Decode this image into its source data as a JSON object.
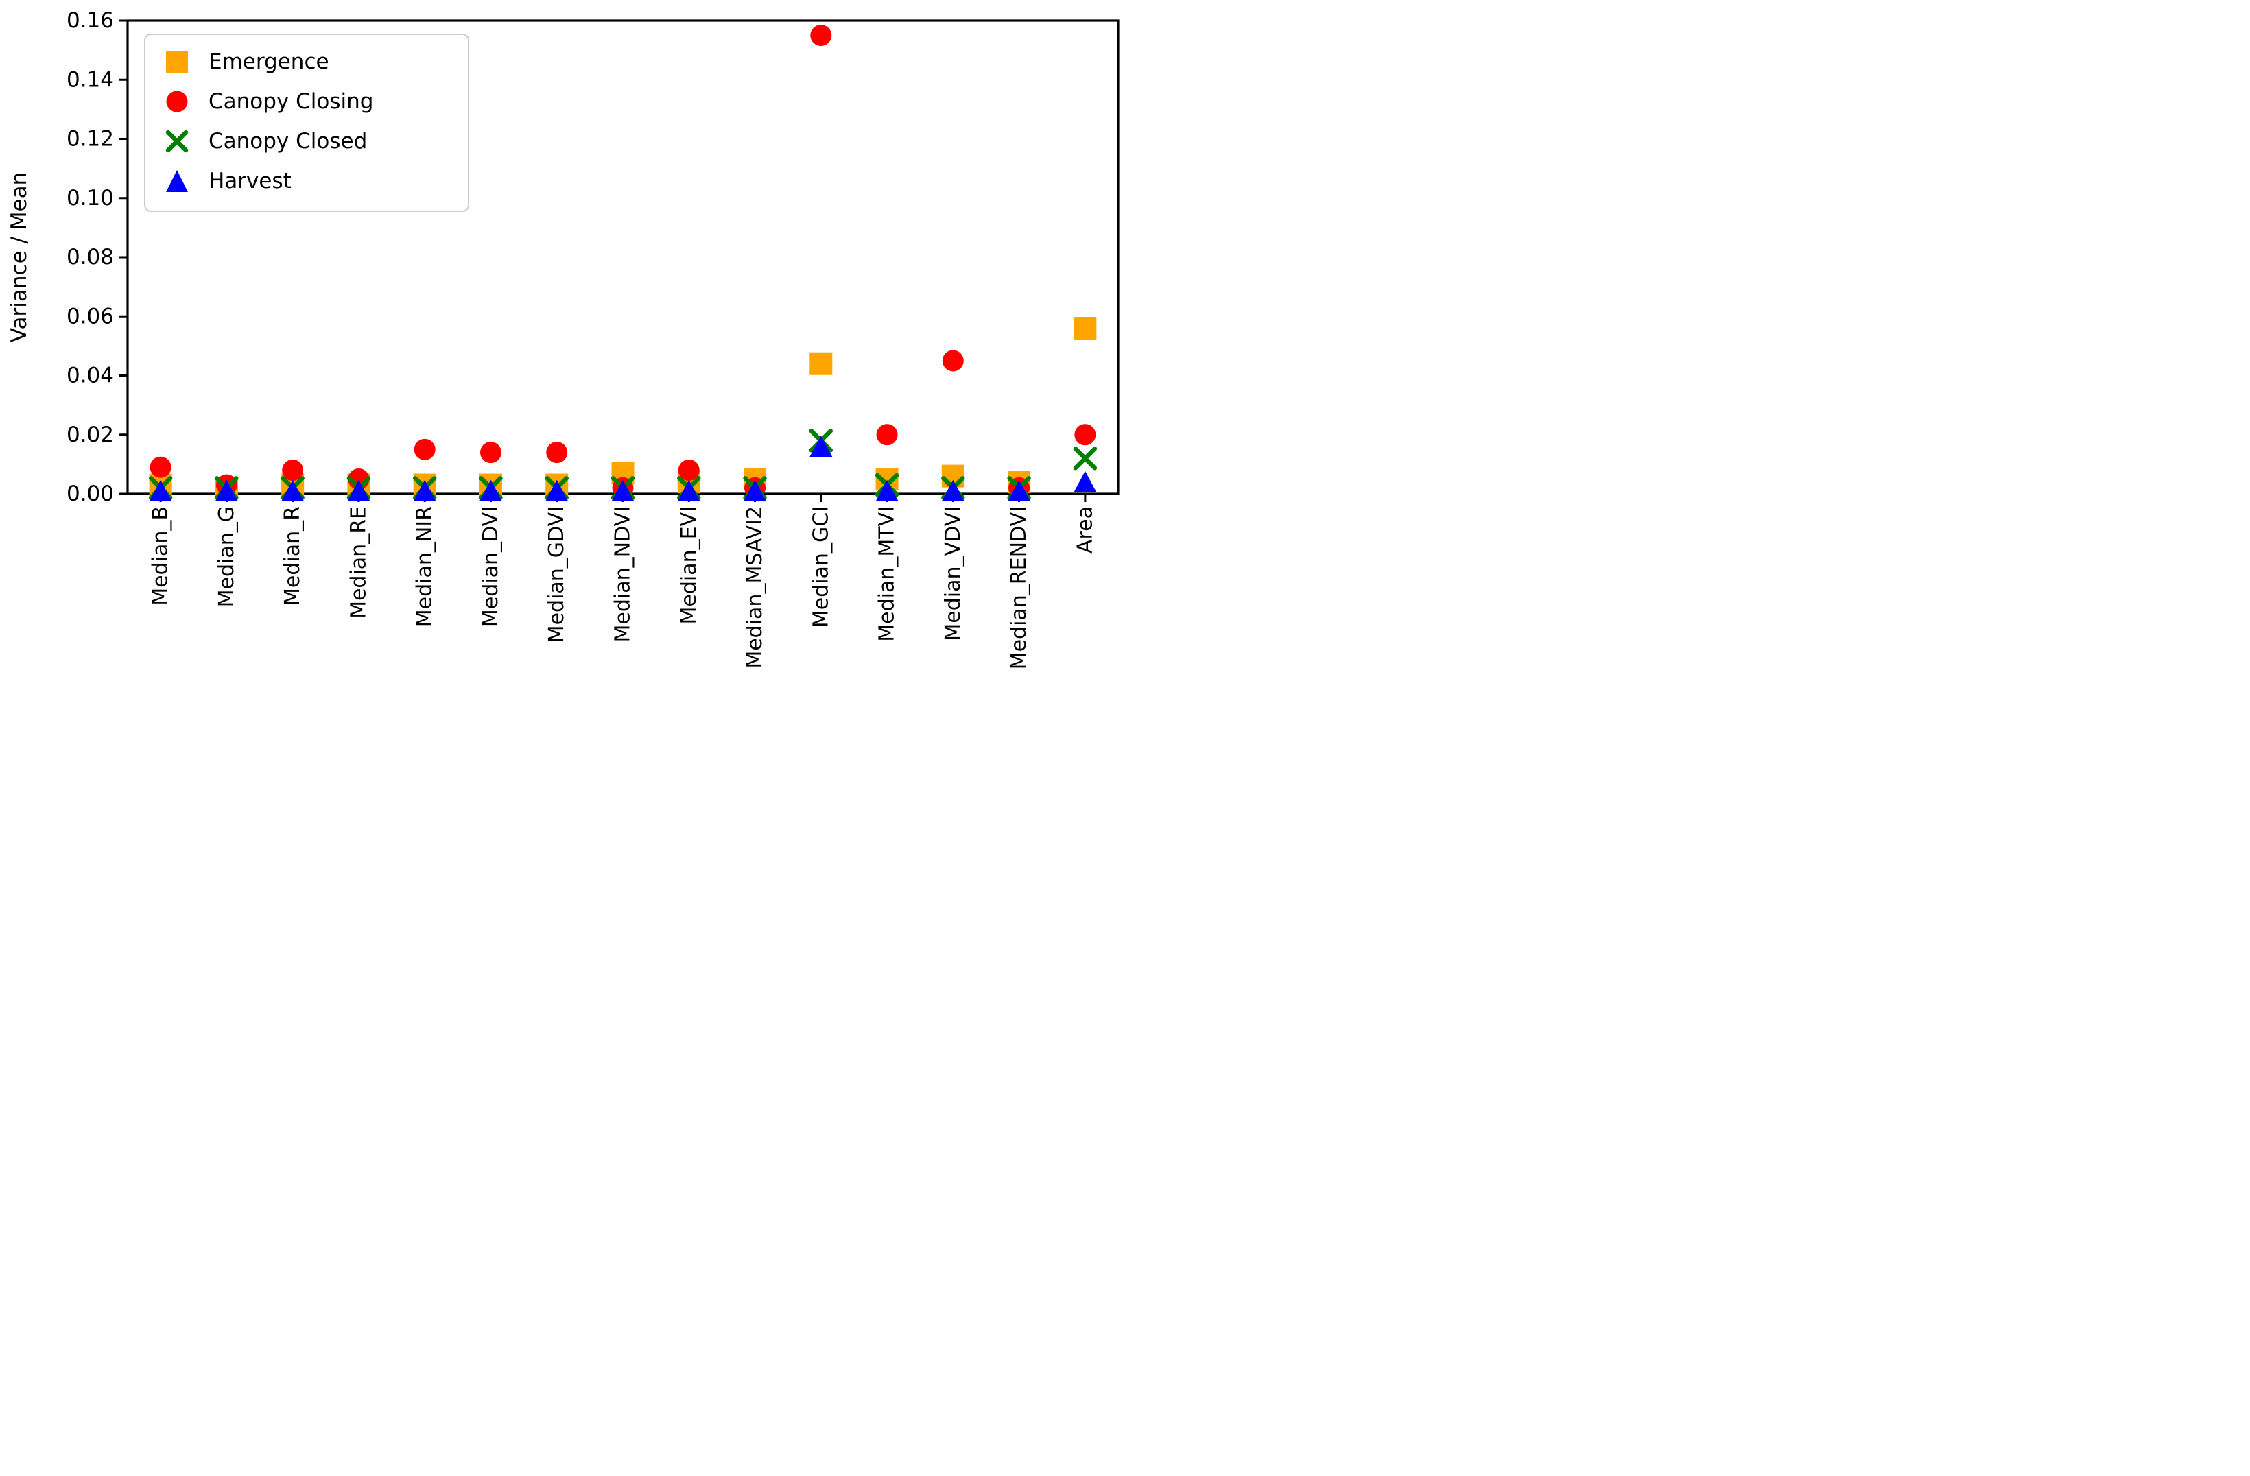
{
  "figure": {
    "background": "#ffffff",
    "axis_color": "#000000"
  },
  "chart_data": {
    "type": "scatter",
    "title": "",
    "xlabel": "",
    "ylabel": "Variance / Mean",
    "ylim": [
      0.0,
      0.16
    ],
    "ytick_step": 0.02,
    "yticks": [
      "0.00",
      "0.02",
      "0.04",
      "0.06",
      "0.08",
      "0.10",
      "0.12",
      "0.14",
      "0.16"
    ],
    "grid": false,
    "legend_position": "upper-left",
    "x_tick_rotation_deg": 90,
    "categories": [
      "Median_B",
      "Median_G",
      "Median_R",
      "Median_RE",
      "Median_NIR",
      "Median_DVI",
      "Median_GDVI",
      "Median_NDVI",
      "Median_EVI",
      "Median_MSAVI2",
      "Median_GCI",
      "Median_MTVI",
      "Median_VDVI",
      "Median_RENDVI",
      "Area"
    ],
    "series": [
      {
        "name": "Emergence",
        "marker": "square",
        "color": "#FFA500",
        "values": [
          0.003,
          0.002,
          0.003,
          0.003,
          0.003,
          0.003,
          0.003,
          0.007,
          0.004,
          0.005,
          0.044,
          0.005,
          0.006,
          0.004,
          0.056
        ]
      },
      {
        "name": "Canopy Closing",
        "marker": "circle",
        "color": "#FF0000",
        "values": [
          0.009,
          0.003,
          0.008,
          0.005,
          0.015,
          0.014,
          0.014,
          0.002,
          0.008,
          0.002,
          0.155,
          0.02,
          0.045,
          0.002,
          0.02
        ]
      },
      {
        "name": "Canopy Closed",
        "marker": "x",
        "color": "#008000",
        "values": [
          0.002,
          0.002,
          0.002,
          0.002,
          0.002,
          0.002,
          0.002,
          0.002,
          0.002,
          0.002,
          0.018,
          0.003,
          0.002,
          0.002,
          0.012
        ]
      },
      {
        "name": "Harvest",
        "marker": "triangle-up",
        "color": "#0000FF",
        "values": [
          0.001,
          0.001,
          0.001,
          0.001,
          0.001,
          0.001,
          0.001,
          0.001,
          0.001,
          0.001,
          0.016,
          0.001,
          0.001,
          0.001,
          0.004
        ]
      }
    ]
  }
}
